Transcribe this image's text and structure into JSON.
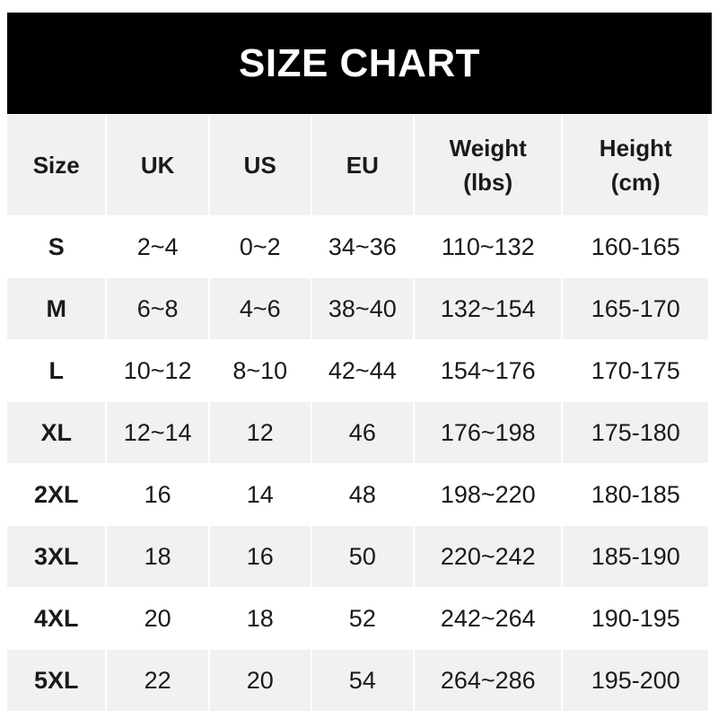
{
  "title": "SIZE CHART",
  "headers": [
    "Size",
    "UK",
    "US",
    "EU",
    "Weight\n(lbs)",
    "Height\n(cm)"
  ],
  "rows": [
    [
      "S",
      "2~4",
      "0~2",
      "34~36",
      "110~132",
      "160-165"
    ],
    [
      "M",
      "6~8",
      "4~6",
      "38~40",
      "132~154",
      "165-170"
    ],
    [
      "L",
      "10~12",
      "8~10",
      "42~44",
      "154~176",
      "170-175"
    ],
    [
      "XL",
      "12~14",
      "12",
      "46",
      "176~198",
      "175-180"
    ],
    [
      "2XL",
      "16",
      "14",
      "48",
      "198~220",
      "180-185"
    ],
    [
      "3XL",
      "18",
      "16",
      "50",
      "220~242",
      "185-190"
    ],
    [
      "4XL",
      "20",
      "18",
      "52",
      "242~264",
      "190-195"
    ],
    [
      "5XL",
      "22",
      "20",
      "54",
      "264~286",
      "195-200"
    ]
  ],
  "colors": {
    "title_bg": "#000000",
    "title_text": "#ffffff",
    "stripe": "#f1f1f1"
  }
}
